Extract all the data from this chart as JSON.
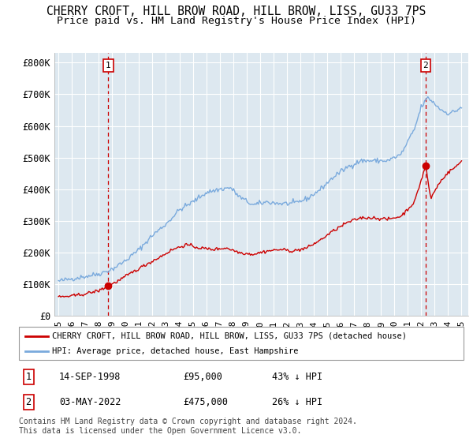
{
  "title": "CHERRY CROFT, HILL BROW ROAD, HILL BROW, LISS, GU33 7PS",
  "subtitle": "Price paid vs. HM Land Registry's House Price Index (HPI)",
  "title_fontsize": 10.5,
  "subtitle_fontsize": 9.5,
  "background_color": "#ffffff",
  "plot_bg_color": "#dde8f0",
  "grid_color": "#ffffff",
  "hpi_color": "#7aaadd",
  "price_color": "#cc0000",
  "ylabel_ticks": [
    "£0",
    "£100K",
    "£200K",
    "£300K",
    "£400K",
    "£500K",
    "£600K",
    "£700K",
    "£800K"
  ],
  "ytick_values": [
    0,
    100000,
    200000,
    300000,
    400000,
    500000,
    600000,
    700000,
    800000
  ],
  "ylim": [
    0,
    830000
  ],
  "xlim_start": 1994.7,
  "xlim_end": 2025.5,
  "purchase1_x": 1998.71,
  "purchase1_y": 95000,
  "purchase1_label": "1",
  "purchase1_date": "14-SEP-1998",
  "purchase1_price": "£95,000",
  "purchase1_hpi": "43% ↓ HPI",
  "purchase2_x": 2022.33,
  "purchase2_y": 475000,
  "purchase2_label": "2",
  "purchase2_date": "03-MAY-2022",
  "purchase2_price": "£475,000",
  "purchase2_hpi": "26% ↓ HPI",
  "legend_line1": "CHERRY CROFT, HILL BROW ROAD, HILL BROW, LISS, GU33 7PS (detached house)",
  "legend_line2": "HPI: Average price, detached house, East Hampshire",
  "footnote": "Contains HM Land Registry data © Crown copyright and database right 2024.\nThis data is licensed under the Open Government Licence v3.0.",
  "xtick_years": [
    1995,
    1996,
    1997,
    1998,
    1999,
    2000,
    2001,
    2002,
    2003,
    2004,
    2005,
    2006,
    2007,
    2008,
    2009,
    2010,
    2011,
    2012,
    2013,
    2014,
    2015,
    2016,
    2017,
    2018,
    2019,
    2020,
    2021,
    2022,
    2023,
    2024,
    2025
  ],
  "hpi_anchors_x": [
    1995.0,
    1996.0,
    1997.0,
    1998.0,
    1999.0,
    2000.0,
    2001.0,
    2002.0,
    2003.0,
    2004.0,
    2005.0,
    2006.0,
    2007.0,
    2007.8,
    2008.5,
    2009.5,
    2010.5,
    2011.5,
    2012.5,
    2013.5,
    2014.5,
    2015.5,
    2016.5,
    2017.5,
    2018.5,
    2019.5,
    2020.5,
    2021.5,
    2022.0,
    2022.5,
    2023.0,
    2023.5,
    2024.0,
    2024.5,
    2025.0
  ],
  "hpi_anchors_y": [
    110000,
    118000,
    125000,
    133000,
    148000,
    175000,
    210000,
    255000,
    290000,
    335000,
    360000,
    390000,
    400000,
    405000,
    375000,
    350000,
    360000,
    355000,
    355000,
    370000,
    400000,
    440000,
    470000,
    490000,
    490000,
    490000,
    510000,
    590000,
    660000,
    690000,
    670000,
    650000,
    640000,
    645000,
    660000
  ],
  "price_anchors_x": [
    1995.0,
    1996.0,
    1997.0,
    1998.0,
    1998.71,
    1999.5,
    2000.5,
    2001.5,
    2002.5,
    2003.5,
    2004.5,
    2005.5,
    2006.5,
    2007.5,
    2008.5,
    2009.5,
    2010.5,
    2011.5,
    2012.5,
    2013.5,
    2014.5,
    2015.5,
    2016.5,
    2017.5,
    2018.5,
    2019.5,
    2020.5,
    2021.5,
    2022.33,
    2022.7,
    2023.2,
    2023.7,
    2024.2,
    2024.7,
    2025.0
  ],
  "price_anchors_y": [
    60000,
    63000,
    70000,
    80000,
    95000,
    112000,
    138000,
    162000,
    185000,
    210000,
    225000,
    215000,
    210000,
    215000,
    200000,
    195000,
    205000,
    210000,
    205000,
    215000,
    240000,
    270000,
    295000,
    310000,
    310000,
    305000,
    315000,
    360000,
    475000,
    370000,
    410000,
    440000,
    460000,
    475000,
    490000
  ]
}
